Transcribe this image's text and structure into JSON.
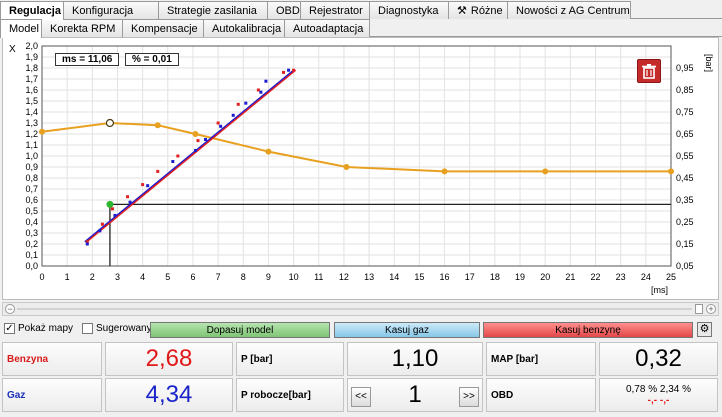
{
  "tabs_main": [
    {
      "label": "Regulacja",
      "active": true
    },
    {
      "label": "Konfiguracja"
    },
    {
      "label": "Strategie zasilania"
    },
    {
      "label": "OBD"
    },
    {
      "label": "Rejestrator"
    },
    {
      "label": "Diagnostyka"
    },
    {
      "label": "Różne",
      "icon": "tools-icon"
    },
    {
      "label": "Nowości z AG Centrum"
    }
  ],
  "tabs_sub": [
    {
      "label": "Model",
      "active": true
    },
    {
      "label": "Korekta RPM"
    },
    {
      "label": "Kompensacje"
    },
    {
      "label": "Autokalibracja"
    },
    {
      "label": "Autoadaptacja"
    }
  ],
  "chart": {
    "ms_label": "ms = 11,06",
    "pct_label": "% = 0,01",
    "x_unit": "[ms]",
    "y2_unit": "[bar]",
    "corner_label": "X"
  },
  "chart_data": {
    "type": "scatter",
    "xlim": [
      0,
      25
    ],
    "ylim": [
      0,
      2.0
    ],
    "y2lim": [
      0.05,
      1.05
    ],
    "grid": true,
    "x_ticks": [
      "0",
      "1",
      "2",
      "3",
      "4",
      "5",
      "6",
      "7",
      "8",
      "9",
      "10",
      "11",
      "12",
      "13",
      "14",
      "15",
      "16",
      "17",
      "18",
      "19",
      "20",
      "21",
      "22",
      "23",
      "24",
      "25"
    ],
    "y_ticks": [
      "0,0",
      "0,1",
      "0,2",
      "0,3",
      "0,4",
      "0,5",
      "0,6",
      "0,7",
      "0,8",
      "0,9",
      "1,0",
      "1,1",
      "1,2",
      "1,3",
      "1,4",
      "1,5",
      "1,6",
      "1,7",
      "1,8",
      "1,9",
      "2,0"
    ],
    "y2_ticks": [
      "0,05",
      "0,15",
      "0,25",
      "0,35",
      "0,45",
      "0,55",
      "0,65",
      "0,75",
      "0,85",
      "0,95"
    ],
    "series": [
      {
        "color": "#e02020",
        "points": [
          [
            1.8,
            0.22
          ],
          [
            2.4,
            0.38
          ],
          [
            2.8,
            0.52
          ],
          [
            3.4,
            0.63
          ],
          [
            4.0,
            0.74
          ],
          [
            4.6,
            0.86
          ],
          [
            5.4,
            1.0
          ],
          [
            6.2,
            1.14
          ],
          [
            7.0,
            1.3
          ],
          [
            7.8,
            1.47
          ],
          [
            8.6,
            1.6
          ],
          [
            9.6,
            1.76
          ],
          [
            10.0,
            1.78
          ]
        ]
      },
      {
        "color": "#1a1ad0",
        "points": [
          [
            1.8,
            0.2
          ],
          [
            2.3,
            0.32
          ],
          [
            2.9,
            0.46
          ],
          [
            3.5,
            0.58
          ],
          [
            4.2,
            0.73
          ],
          [
            5.2,
            0.95
          ],
          [
            6.1,
            1.05
          ],
          [
            6.5,
            1.15
          ],
          [
            7.1,
            1.27
          ],
          [
            7.6,
            1.37
          ],
          [
            8.1,
            1.48
          ],
          [
            8.7,
            1.58
          ],
          [
            8.9,
            1.68
          ],
          [
            9.8,
            1.78
          ]
        ]
      }
    ],
    "fit_line": {
      "from": [
        1.7,
        0.22
      ],
      "to": [
        10.0,
        1.78
      ]
    },
    "curve": {
      "color": "#e8a020",
      "axis": "y2",
      "points": [
        [
          0,
          0.66
        ],
        [
          2.7,
          0.7
        ],
        [
          4.6,
          0.69
        ],
        [
          6.1,
          0.65
        ],
        [
          9.0,
          0.57
        ],
        [
          12.1,
          0.5
        ],
        [
          16.0,
          0.48
        ],
        [
          20.0,
          0.48
        ],
        [
          25.0,
          0.48
        ]
      ]
    },
    "marker": {
      "x": 2.7,
      "y": 0.56,
      "color": "#2fb82f"
    },
    "crosshair": {
      "x": 2.7,
      "y": 0.56
    }
  },
  "options": {
    "show_maps": "Pokaż mapy",
    "show_maps_checked": true,
    "suggested_model": "Sugerowany model",
    "suggested_checked": false,
    "fit_button": "Dopasuj model",
    "clear_gas_button": "Kasuj gaz",
    "clear_petrol_button": "Kasuj benzynę"
  },
  "readouts": {
    "petrol_label": "Benzyna",
    "petrol_value": "2,68",
    "gas_label": "Gaz",
    "gas_value": "4,34",
    "p_label": "P [bar]",
    "p_value": "1,10",
    "p_work_label": "P robocze[bar]",
    "p_work_value": "1",
    "prev_btn": "<<",
    "next_btn": ">>",
    "map_label": "MAP [bar]",
    "map_value": "0,32",
    "obd_label": "OBD",
    "obd_values": "0,78 % 2,34 %",
    "obd_sub": "-,- -,-"
  }
}
